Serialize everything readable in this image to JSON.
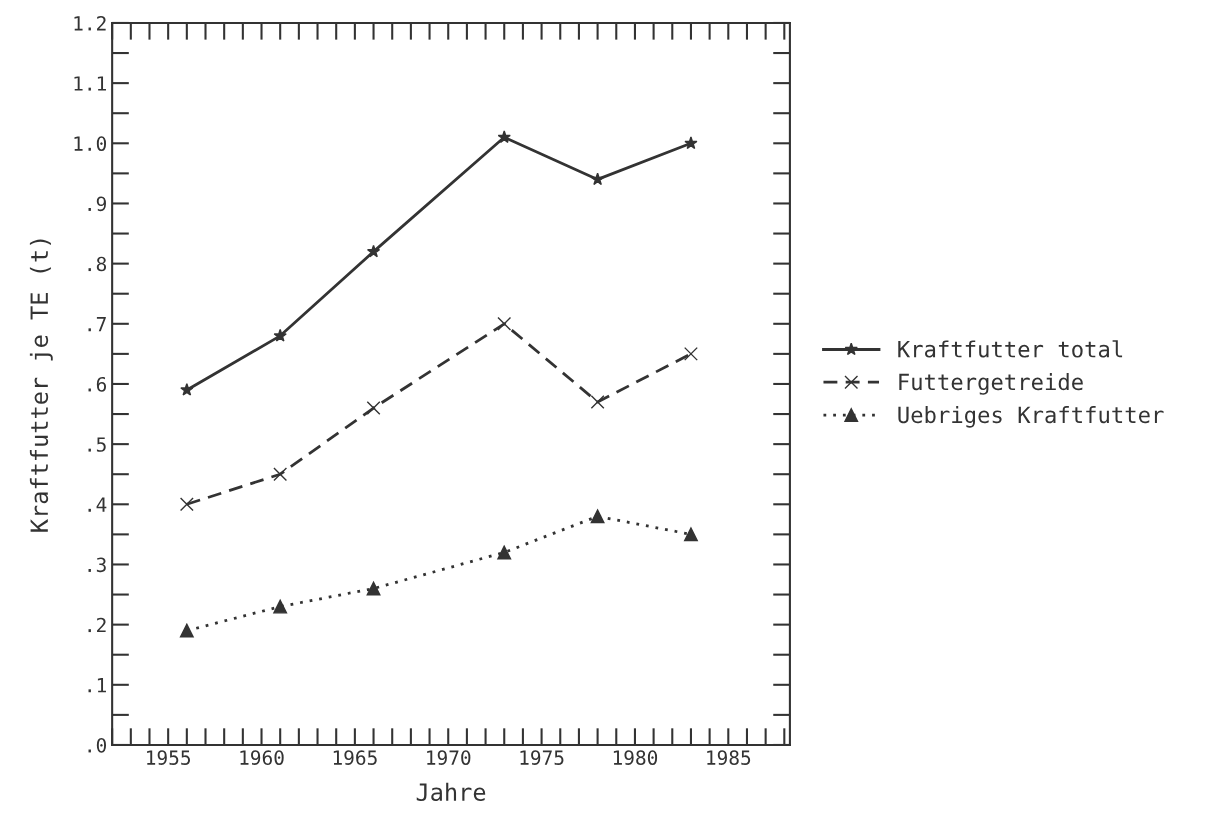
{
  "chart_data": {
    "type": "line",
    "xlabel": "Jahre",
    "ylabel": "Kraftfutter je TE (t)",
    "x": [
      1956,
      1961,
      1966,
      1973,
      1978,
      1983
    ],
    "series": [
      {
        "name": "Kraftfutter total",
        "color": "#333333",
        "marker": "star",
        "line_style": "solid",
        "values": [
          0.59,
          0.68,
          0.82,
          1.01,
          0.94,
          1.0
        ]
      },
      {
        "name": "Futtergetreide",
        "color": "#333333",
        "marker": "cross",
        "line_style": "dashed",
        "values": [
          0.4,
          0.45,
          0.56,
          0.7,
          0.57,
          0.65
        ]
      },
      {
        "name": "Uebriges Kraftfutter",
        "color": "#333333",
        "marker": "triangle",
        "line_style": "dotted",
        "values": [
          0.19,
          0.23,
          0.26,
          0.32,
          0.38,
          0.35
        ]
      }
    ],
    "xlim": [
      1952,
      1988.3
    ],
    "xticks": [
      1955,
      1960,
      1965,
      1970,
      1975,
      1980,
      1985
    ],
    "ylim": [
      0,
      1.2
    ],
    "yticks": [
      {
        "value": 0,
        "label": ".0"
      },
      {
        "value": 0.1,
        "label": ".1"
      },
      {
        "value": 0.2,
        "label": ".2"
      },
      {
        "value": 0.3,
        "label": ".3"
      },
      {
        "value": 0.4,
        "label": ".4"
      },
      {
        "value": 0.5,
        "label": ".5"
      },
      {
        "value": 0.6,
        "label": ".6"
      },
      {
        "value": 0.7,
        "label": ".7"
      },
      {
        "value": 0.8,
        "label": ".8"
      },
      {
        "value": 0.9,
        "label": ".9"
      },
      {
        "value": 1.0,
        "label": "1.0"
      },
      {
        "value": 1.1,
        "label": "1.1"
      },
      {
        "value": 1.2,
        "label": "1.2"
      }
    ],
    "grid": false,
    "legend": "right"
  }
}
